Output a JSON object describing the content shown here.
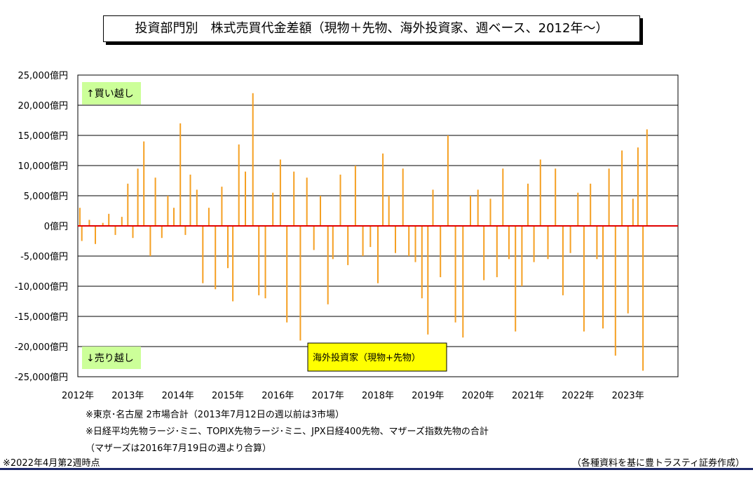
{
  "header": {
    "title": "投資部門別　株式売買代金差額（現物＋先物、海外投資家、週ベース、2012年～）"
  },
  "notes": {
    "note1": "※東京･名古屋 2市場合計（2013年7月12日の週以前は3市場）",
    "note2": "※日経平均先物ラージ･ミニ、TOPIX先物ラージ･ミニ、JPX日経400先物、マザーズ指数先物の合計",
    "note3": "（マザーズは2016年7月19日の週より合算）",
    "as_of": "※2022年4月第2週時点",
    "source": "（各種資料を基に豊トラスティ証券作成）"
  },
  "chart_data": {
    "type": "bar",
    "x_tick_labels": [
      "2012年",
      "2013年",
      "2014年",
      "2015年",
      "2016年",
      "2017年",
      "2018年",
      "2019年",
      "2020年",
      "2021年",
      "2022年",
      "2023年"
    ],
    "y_tick_labels": [
      "25,000億円",
      "20,000億円",
      "15,000億円",
      "10,000億円",
      "5,000億円",
      "0億円",
      "-5,000億円",
      "-10,000億円",
      "-15,000億円",
      "-20,000億円",
      "-25,000億円"
    ],
    "ylim": [
      -25000,
      25000
    ],
    "xlim": [
      2012.0,
      2024.0
    ],
    "grid": true,
    "annotations": {
      "buy": "↑買い越し",
      "sell": "↓売り越し",
      "legend": "海外投資家（現物+先物）"
    },
    "colors": {
      "bars": "#f5a023",
      "zero_line": "#e00000",
      "annotation_bg": "#ccff99",
      "legend_bg": "#ffff00"
    },
    "series": [
      {
        "x": [
          2012.04,
          2012.08,
          2012.23,
          2012.35,
          2012.5,
          2012.62,
          2012.75,
          2012.88,
          2013.0,
          2013.1,
          2013.2,
          2013.32,
          2013.45,
          2013.55,
          2013.68,
          2013.8,
          2013.92,
          2014.05,
          2014.15,
          2014.25,
          2014.38,
          2014.5,
          2014.62,
          2014.75,
          2014.88,
          2015.0,
          2015.1,
          2015.22,
          2015.35,
          2015.5,
          2015.62,
          2015.75,
          2015.9,
          2016.05,
          2016.18,
          2016.32,
          2016.45,
          2016.58,
          2016.72,
          2016.85,
          2017.0,
          2017.1,
          2017.25,
          2017.4,
          2017.55,
          2017.7,
          2017.85,
          2018.0,
          2018.1,
          2018.22,
          2018.35,
          2018.5,
          2018.62,
          2018.75,
          2018.88,
          2019.0,
          2019.1,
          2019.25,
          2019.4,
          2019.55,
          2019.7,
          2019.85,
          2020.0,
          2020.12,
          2020.25,
          2020.38,
          2020.5,
          2020.62,
          2020.75,
          2020.88,
          2021.0,
          2021.12,
          2021.25,
          2021.4,
          2021.55,
          2021.7,
          2021.85,
          2022.0,
          2022.12,
          2022.25,
          2022.38,
          2022.5,
          2022.62,
          2022.75,
          2022.88,
          2023.0,
          2023.1,
          2023.2,
          2023.3,
          2023.38
        ],
        "values": [
          3000,
          -2500,
          1000,
          -3000,
          500,
          2000,
          -1500,
          1500,
          7000,
          -2000,
          9500,
          14000,
          -5000,
          8000,
          -2000,
          5000,
          3000,
          17000,
          -1500,
          8500,
          6000,
          -9500,
          3000,
          -10500,
          6500,
          -7000,
          -12500,
          13500,
          9000,
          22000,
          -11500,
          -12000,
          5500,
          11000,
          -16000,
          9000,
          -19000,
          8000,
          -4000,
          5000,
          -13000,
          -5500,
          8500,
          -6500,
          10000,
          -5000,
          -3500,
          -9500,
          12000,
          5000,
          -4500,
          9500,
          -5000,
          -6000,
          -12000,
          -18000,
          6000,
          -8500,
          15000,
          -16000,
          -18500,
          5000,
          6000,
          -9000,
          4500,
          -8500,
          9500,
          -5500,
          -17500,
          -10000,
          7000,
          -6000,
          11000,
          -5500,
          9500,
          -11500,
          -4500,
          5500,
          -17500,
          7000,
          -5500,
          -17000,
          9500,
          -21500,
          12500,
          -14500,
          4500,
          13000,
          -24000,
          16000
        ]
      }
    ]
  }
}
